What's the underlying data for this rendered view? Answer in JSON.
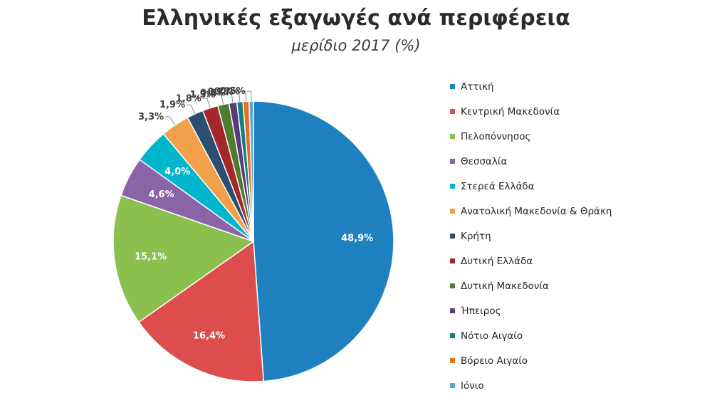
{
  "title": "Ελληνικές εξαγωγές ανά περιφέρεια",
  "subtitle": "μερίδιο 2017 (%)",
  "chart_data": {
    "type": "pie",
    "title": "Ελληνικές εξαγωγές ανά περιφέρεια",
    "subtitle": "μερίδιο 2017 (%)",
    "legend_position": "right",
    "categories": [
      "Αττική",
      "Κεντρική Μακεδονία",
      "Πελοπόννησος",
      "Θεσσαλία",
      "Στερεά Ελλάδα",
      "Ανατολική Μακεδονία & Θράκη",
      "Κρήτη",
      "Δυτική Ελλάδα",
      "Δυτική Μακεδονία",
      "Ήπειρος",
      "Νότιο Αιγαίο",
      "Βόρειο Αιγαίο",
      "Ιόνιο"
    ],
    "values": [
      48.9,
      16.4,
      15.1,
      4.6,
      4.0,
      3.3,
      1.9,
      1.8,
      1.3,
      0.9,
      0.7,
      0.7,
      0.5
    ],
    "data_labels": [
      "48,9%",
      "16,4%",
      "15,1%",
      "4,6%",
      "4,0%",
      "3,3%",
      "1,9%",
      "1,8%",
      "1,3%",
      "0,9%",
      "0,7%",
      "0,7%",
      "0,5%"
    ],
    "colors": [
      "#1f80c0",
      "#dd4d4d",
      "#8cc04e",
      "#8b63a8",
      "#00b5cc",
      "#f2a04a",
      "#2b4f71",
      "#a3282c",
      "#4f7d2e",
      "#5a3c7a",
      "#0f8180",
      "#e86d1e",
      "#5aa6db"
    ]
  }
}
